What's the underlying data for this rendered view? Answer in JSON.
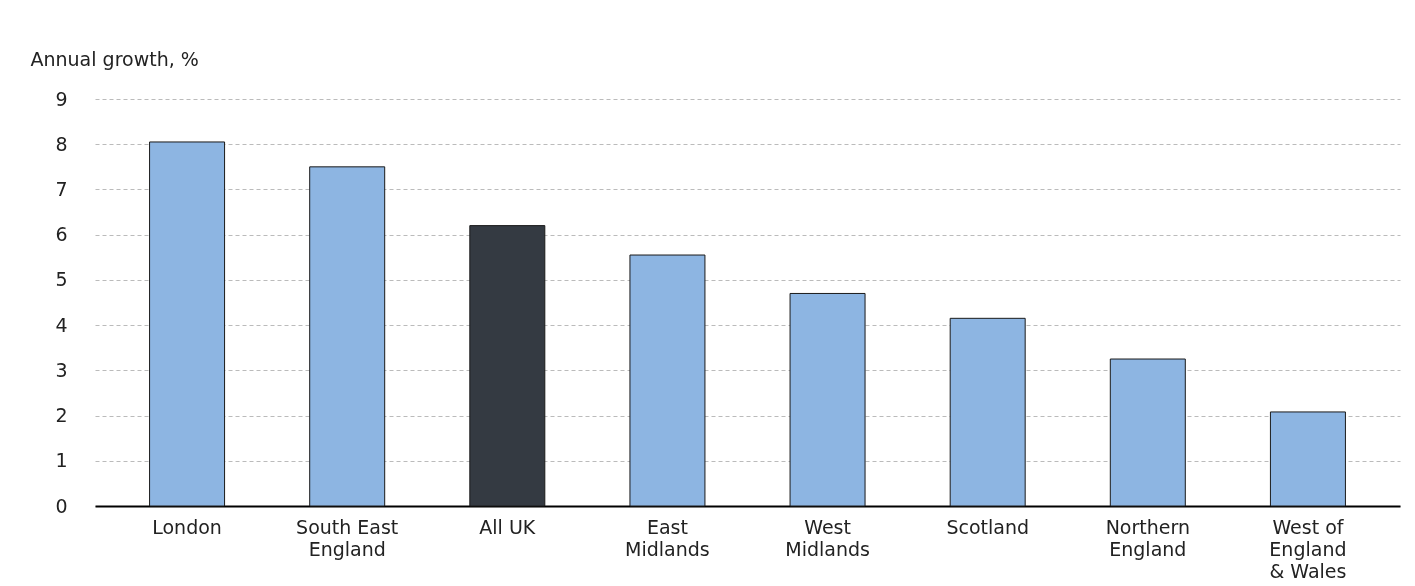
{
  "chart_data": {
    "type": "bar",
    "ylabel": "Annual growth, %",
    "categories": [
      "London",
      "South East\nEngland",
      "All UK",
      "East\nMidlands",
      "West\nMidlands",
      "Scotland",
      "Northern\nEngland",
      "West of\nEngland\n& Wales"
    ],
    "values": [
      8.05,
      7.5,
      6.2,
      5.55,
      4.7,
      4.15,
      3.25,
      2.08
    ],
    "colors": [
      "#8db5e2",
      "#8db5e2",
      "#343a42",
      "#8db5e2",
      "#8db5e2",
      "#8db5e2",
      "#8db5e2",
      "#8db5e2"
    ],
    "ylim": [
      0,
      9
    ],
    "yticks": [
      0,
      1,
      2,
      3,
      4,
      5,
      6,
      7,
      8,
      9
    ],
    "grid": "y"
  }
}
